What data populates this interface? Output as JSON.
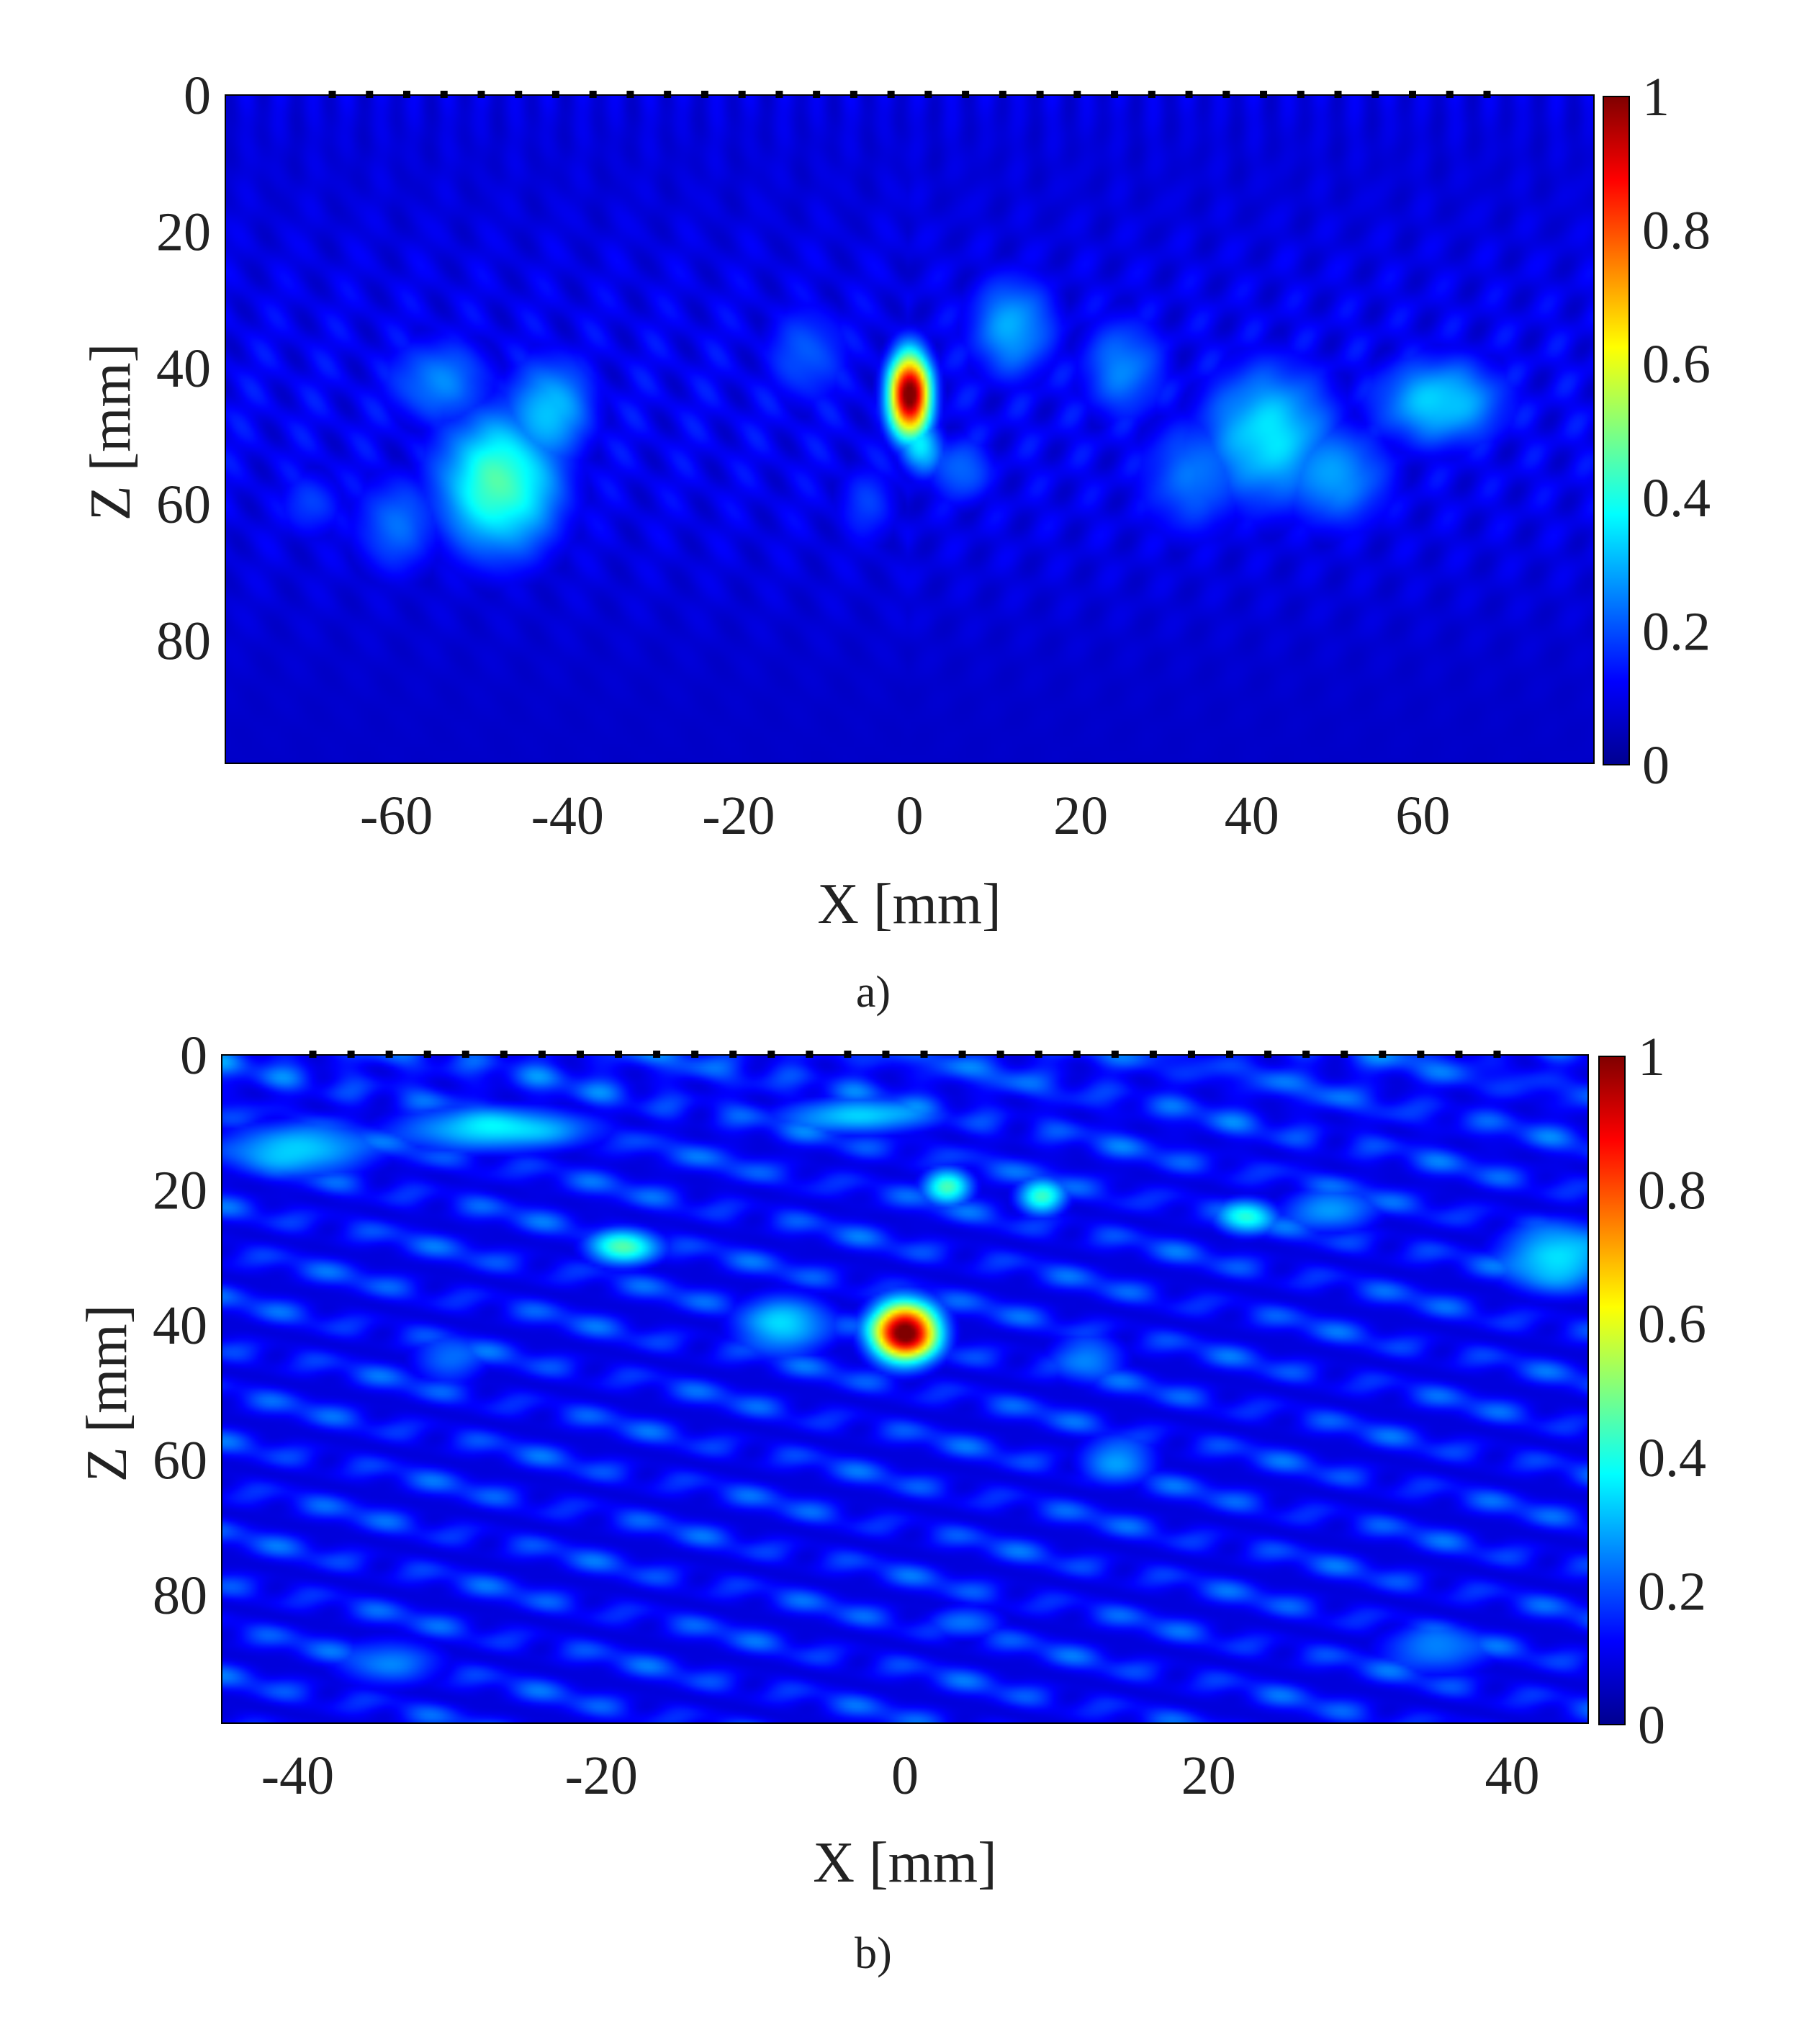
{
  "figure": {
    "panels": [
      {
        "caption": "a)",
        "xlabel": "X [mm]",
        "ylabel": "Z [mm]",
        "xticks": [
          "-60",
          "-40",
          "-20",
          "0",
          "20",
          "40",
          "60"
        ],
        "yticks": [
          "0",
          "20",
          "40",
          "60",
          "80"
        ],
        "colorbar_ticks": [
          "1",
          "0.8",
          "0.6",
          "0.4",
          "0.2",
          "0"
        ]
      },
      {
        "caption": "b)",
        "xlabel": "X [mm]",
        "ylabel": "Z [mm]",
        "xticks": [
          "-40",
          "-20",
          "0",
          "20",
          "40"
        ],
        "yticks": [
          "0",
          "20",
          "40",
          "60",
          "80"
        ],
        "colorbar_ticks": [
          "1",
          "0.8",
          "0.6",
          "0.4",
          "0.2",
          "0"
        ]
      }
    ]
  },
  "chart_data": [
    {
      "type": "heatmap",
      "title": "",
      "caption": "a)",
      "xlabel": "X [mm]",
      "ylabel": "Z [mm]",
      "xlim": [
        -80,
        80
      ],
      "ylim": [
        0,
        98
      ],
      "y_direction": "down",
      "xticks": [
        -60,
        -40,
        -20,
        0,
        20,
        40,
        60
      ],
      "yticks": [
        0,
        20,
        40,
        60,
        80
      ],
      "colormap": "jet",
      "colorbar": {
        "min": 0,
        "max": 1,
        "ticks": [
          0,
          0.2,
          0.4,
          0.6,
          0.8,
          1
        ]
      },
      "array_elements": {
        "count": 32,
        "x_start": -67.5,
        "x_end": 67.5,
        "z": 0
      },
      "background_level": 0.07,
      "hotspots": [
        {
          "x": 0,
          "z": 44,
          "sx": 1.8,
          "sz": 4.5,
          "value": 1.0
        },
        {
          "x": 1.5,
          "z": 52,
          "sx": 2.0,
          "sz": 3.0,
          "value": 0.3
        },
        {
          "x": -48,
          "z": 57,
          "sx": 5.5,
          "sz": 8.0,
          "value": 0.42
        },
        {
          "x": -42,
          "z": 46,
          "sx": 4.0,
          "sz": 6.0,
          "value": 0.28
        },
        {
          "x": -55,
          "z": 42,
          "sx": 5.0,
          "sz": 5.0,
          "value": 0.22
        },
        {
          "x": -60,
          "z": 63,
          "sx": 4.0,
          "sz": 6.0,
          "value": 0.2
        },
        {
          "x": 42,
          "z": 50,
          "sx": 6.0,
          "sz": 8.0,
          "value": 0.32
        },
        {
          "x": 62,
          "z": 45,
          "sx": 6.0,
          "sz": 5.0,
          "value": 0.3
        },
        {
          "x": 50,
          "z": 56,
          "sx": 5.0,
          "sz": 6.0,
          "value": 0.24
        },
        {
          "x": 12,
          "z": 34,
          "sx": 4.0,
          "sz": 6.0,
          "value": 0.26
        },
        {
          "x": 25,
          "z": 40,
          "sx": 4.0,
          "sz": 6.0,
          "value": 0.22
        },
        {
          "x": -12,
          "z": 38,
          "sx": 4.0,
          "sz": 6.0,
          "value": 0.18
        },
        {
          "x": 33,
          "z": 56,
          "sx": 5.0,
          "sz": 7.0,
          "value": 0.2
        },
        {
          "x": -70,
          "z": 60,
          "sx": 3.0,
          "sz": 4.0,
          "value": 0.16
        },
        {
          "x": 6,
          "z": 55,
          "sx": 3.0,
          "sz": 4.0,
          "value": 0.2
        },
        {
          "x": -5,
          "z": 60,
          "sx": 3.0,
          "sz": 5.0,
          "value": 0.15
        }
      ]
    },
    {
      "type": "heatmap",
      "title": "",
      "caption": "b)",
      "xlabel": "X [mm]",
      "ylabel": "Z [mm]",
      "xlim": [
        -45,
        45
      ],
      "ylim": [
        0,
        99
      ],
      "y_direction": "down",
      "xticks": [
        -40,
        -20,
        0,
        20,
        40
      ],
      "yticks": [
        0,
        20,
        40,
        60,
        80
      ],
      "colormap": "jet",
      "colorbar": {
        "min": 0,
        "max": 1,
        "ticks": [
          0,
          0.2,
          0.4,
          0.6,
          0.8,
          1
        ]
      },
      "array_elements": {
        "count": 32,
        "x_start": -39,
        "x_end": 39,
        "z": 0
      },
      "background_level": 0.09,
      "hotspots": [
        {
          "x": 0,
          "z": 41,
          "sx": 1.6,
          "sz": 3.2,
          "value": 1.0
        },
        {
          "x": -18.5,
          "z": 28.5,
          "sx": 1.8,
          "sz": 2.0,
          "value": 0.42
        },
        {
          "x": 2.8,
          "z": 19.5,
          "sx": 1.2,
          "sz": 2.0,
          "value": 0.42
        },
        {
          "x": 9,
          "z": 21,
          "sx": 1.2,
          "sz": 2.0,
          "value": 0.4
        },
        {
          "x": 22.5,
          "z": 24,
          "sx": 1.5,
          "sz": 2.0,
          "value": 0.36
        },
        {
          "x": -8,
          "z": 40,
          "sx": 2.5,
          "sz": 3.5,
          "value": 0.3
        },
        {
          "x": -27,
          "z": 11,
          "sx": 5.0,
          "sz": 2.5,
          "value": 0.32
        },
        {
          "x": -40,
          "z": 14,
          "sx": 4.0,
          "sz": 3.0,
          "value": 0.3
        },
        {
          "x": 43,
          "z": 30,
          "sx": 3.0,
          "sz": 4.0,
          "value": 0.32
        },
        {
          "x": 28,
          "z": 23,
          "sx": 2.5,
          "sz": 2.5,
          "value": 0.25
        },
        {
          "x": -3,
          "z": 9,
          "sx": 4.0,
          "sz": 2.0,
          "value": 0.3
        },
        {
          "x": 12,
          "z": 45,
          "sx": 2.0,
          "sz": 3.0,
          "value": 0.22
        },
        {
          "x": 14,
          "z": 60,
          "sx": 2.0,
          "sz": 3.0,
          "value": 0.24
        },
        {
          "x": -30,
          "z": 45,
          "sx": 2.0,
          "sz": 3.0,
          "value": 0.2
        },
        {
          "x": 35,
          "z": 88,
          "sx": 3.0,
          "sz": 3.0,
          "value": 0.22
        },
        {
          "x": -34,
          "z": 90,
          "sx": 3.0,
          "sz": 3.0,
          "value": 0.2
        },
        {
          "x": 4,
          "z": 84,
          "sx": 2.0,
          "sz": 2.0,
          "value": 0.2
        }
      ]
    }
  ]
}
